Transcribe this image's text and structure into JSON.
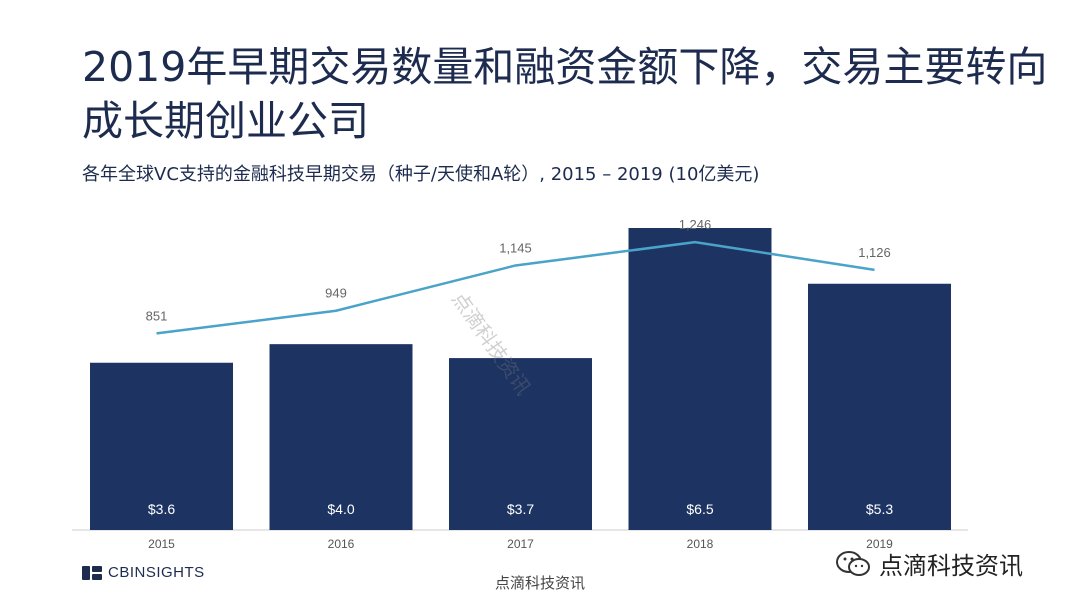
{
  "title": "2019年早期交易数量和融资金额下降，交易主要转向成长期创业公司",
  "subtitle": "各年全球VC支持的金融科技早期交易（种子/天使和A轮）, 2015 – 2019 (10亿美元)",
  "footer": {
    "brand": "CBINSIGHTS",
    "center_watermark": "点滴科技资讯",
    "wechat_watermark": "点滴科技资讯",
    "diagonal_watermark": "点滴科技资讯"
  },
  "chart_data": {
    "type": "bar",
    "categories": [
      "2015",
      "2016",
      "2017",
      "2018",
      "2019"
    ],
    "series": [
      {
        "type": "bar",
        "values": [
          3.6,
          4.0,
          3.7,
          6.5,
          5.3
        ],
        "labels": [
          "$3.6",
          "$4.0",
          "$3.7",
          "$6.5",
          "$5.3"
        ],
        "color": "#1d3463"
      },
      {
        "type": "line",
        "values": [
          851,
          949,
          1145,
          1246,
          1126
        ],
        "labels": [
          "851",
          "949",
          "1,145",
          "1,246",
          "1,126"
        ],
        "color": "#4aa3c8"
      }
    ],
    "bar_ylim": [
      0,
      6.5
    ],
    "line_ylim": [
      0,
      1450
    ],
    "grid": false,
    "legend": "none"
  }
}
